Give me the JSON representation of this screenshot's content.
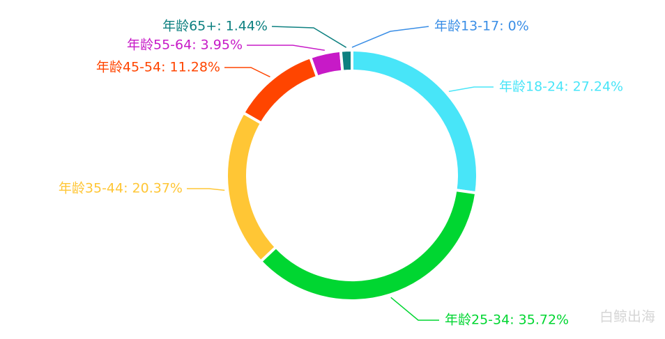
{
  "chart_data": {
    "type": "donut",
    "value_labels": [
      "年龄13-17: 0%",
      "年龄18-24: 27.24%",
      "年龄25-34: 35.72%",
      "年龄35-44: 20.37%",
      "年龄45-54: 11.28%",
      "年龄55-64: 3.95%",
      "年龄65+: 1.44%"
    ],
    "values": [
      0,
      27.24,
      35.72,
      20.37,
      11.28,
      3.95,
      1.44
    ],
    "colors": [
      "#3a8ee6",
      "#48e5f8",
      "#00d631",
      "#ffc635",
      "#ff4500",
      "#c71ac7",
      "#0d8080"
    ],
    "watermark": "白鲸出海"
  }
}
